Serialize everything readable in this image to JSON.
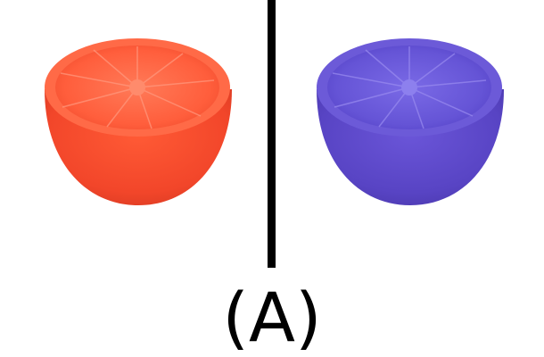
{
  "caption": "(A)",
  "colors": {
    "background": "#ffffff",
    "divider": "#000000",
    "left_fruit_skin": "#f24a2b",
    "left_fruit_flesh": "#ff6a4a",
    "right_fruit_skin": "#5a45c8",
    "right_fruit_flesh": "#6d5ad8"
  },
  "images": [
    {
      "name": "red-orange-half",
      "description_icon": "orange-half-icon"
    },
    {
      "name": "blue-orange-half",
      "description_icon": "orange-half-icon"
    }
  ]
}
